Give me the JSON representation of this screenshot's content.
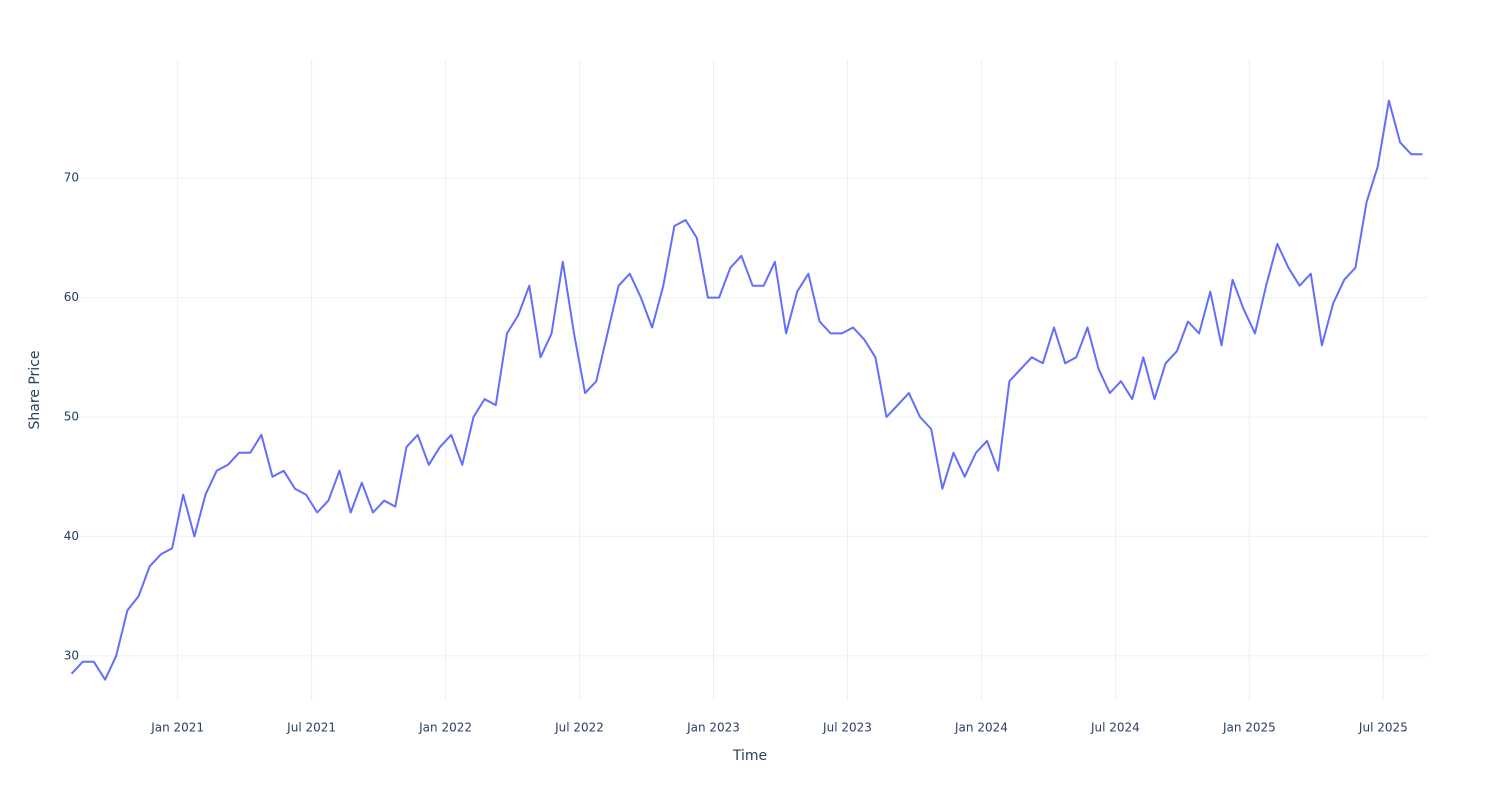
{
  "chart_data": {
    "type": "line",
    "x_label": "Time",
    "y_label": "Share Price",
    "x": [
      "2020-08",
      "2020-08",
      "2020-09",
      "2020-09",
      "2020-10",
      "2020-10",
      "2020-11",
      "2020-11",
      "2020-12",
      "2020-12",
      "2021-01",
      "2021-01",
      "2021-02",
      "2021-02",
      "2021-03",
      "2021-03",
      "2021-04",
      "2021-04",
      "2021-05",
      "2021-05",
      "2021-06",
      "2021-06",
      "2021-07",
      "2021-07",
      "2021-08",
      "2021-08",
      "2021-09",
      "2021-09",
      "2021-10",
      "2021-10",
      "2021-11",
      "2021-11",
      "2021-12",
      "2021-12",
      "2022-01",
      "2022-01",
      "2022-02",
      "2022-02",
      "2022-03",
      "2022-03",
      "2022-04",
      "2022-04",
      "2022-05",
      "2022-05",
      "2022-06",
      "2022-06",
      "2022-07",
      "2022-07",
      "2022-08",
      "2022-08",
      "2022-09",
      "2022-09",
      "2022-10",
      "2022-10",
      "2022-11",
      "2022-11",
      "2022-12",
      "2022-12",
      "2023-01",
      "2023-01",
      "2023-02",
      "2023-02",
      "2023-03",
      "2023-03",
      "2023-04",
      "2023-04",
      "2023-05",
      "2023-05",
      "2023-06",
      "2023-06",
      "2023-07",
      "2023-07",
      "2023-08",
      "2023-08",
      "2023-09",
      "2023-09",
      "2023-10",
      "2023-10",
      "2023-11",
      "2023-11",
      "2023-12",
      "2023-12",
      "2024-01",
      "2024-01",
      "2024-02",
      "2024-02",
      "2024-03",
      "2024-03",
      "2024-04",
      "2024-04",
      "2024-05",
      "2024-05",
      "2024-06",
      "2024-06",
      "2024-07",
      "2024-07",
      "2024-08",
      "2024-08",
      "2024-09",
      "2024-09",
      "2024-10",
      "2024-10",
      "2024-11",
      "2024-11",
      "2024-12",
      "2024-12",
      "2025-01",
      "2025-01",
      "2025-02",
      "2025-02",
      "2025-03",
      "2025-03",
      "2025-04",
      "2025-04",
      "2025-05",
      "2025-05",
      "2025-06",
      "2025-06",
      "2025-07",
      "2025-07",
      "2025-08",
      "2025-08"
    ],
    "values": [
      28.5,
      29.5,
      29.5,
      28,
      30,
      33.8,
      35,
      37.5,
      38.5,
      39,
      43.5,
      40,
      43.5,
      45.5,
      46,
      47,
      47,
      48.5,
      45,
      45.5,
      44,
      43.5,
      42,
      43,
      45.5,
      42,
      44.5,
      42,
      43,
      42.5,
      47.5,
      48.5,
      46,
      47.5,
      48.5,
      46,
      50,
      51.5,
      51,
      57,
      58.5,
      61,
      55,
      57,
      63,
      57,
      52,
      53,
      57,
      61,
      62,
      60,
      57.5,
      61,
      66,
      66.5,
      65,
      60,
      60,
      62.5,
      63.5,
      61,
      61,
      63,
      57,
      60.5,
      62,
      58,
      57,
      57,
      57.5,
      56.5,
      55,
      50,
      51,
      52,
      50,
      49,
      44,
      47,
      45,
      47,
      48,
      45.5,
      53,
      54,
      55,
      54.5,
      57.5,
      54.5,
      55,
      57.5,
      54,
      52,
      53,
      51.5,
      55,
      51.5,
      54.5,
      55.5,
      58,
      57,
      60.5,
      56,
      61.5,
      59,
      57,
      61,
      64.5,
      62.5,
      61,
      62,
      56,
      59.5,
      61.5,
      62.5,
      68,
      71,
      76.5,
      73,
      72,
      72
    ],
    "color": "#636efa",
    "xlim": [
      "2020-08",
      "2025-09"
    ],
    "xticks": [
      {
        "value": "2021-01",
        "label": "Jan 2021"
      },
      {
        "value": "2021-07",
        "label": "Jul 2021"
      },
      {
        "value": "2022-01",
        "label": "Jan 2022"
      },
      {
        "value": "2022-07",
        "label": "Jul 2022"
      },
      {
        "value": "2023-01",
        "label": "Jan 2023"
      },
      {
        "value": "2023-07",
        "label": "Jul 2023"
      },
      {
        "value": "2024-01",
        "label": "Jan 2024"
      },
      {
        "value": "2024-07",
        "label": "Jul 2024"
      },
      {
        "value": "2025-01",
        "label": "Jan 2025"
      },
      {
        "value": "2025-07",
        "label": "Jul 2025"
      }
    ],
    "ylim": [
      26.3,
      79.9
    ],
    "yticks": [
      30,
      40,
      50,
      60,
      70
    ],
    "grid": true
  }
}
